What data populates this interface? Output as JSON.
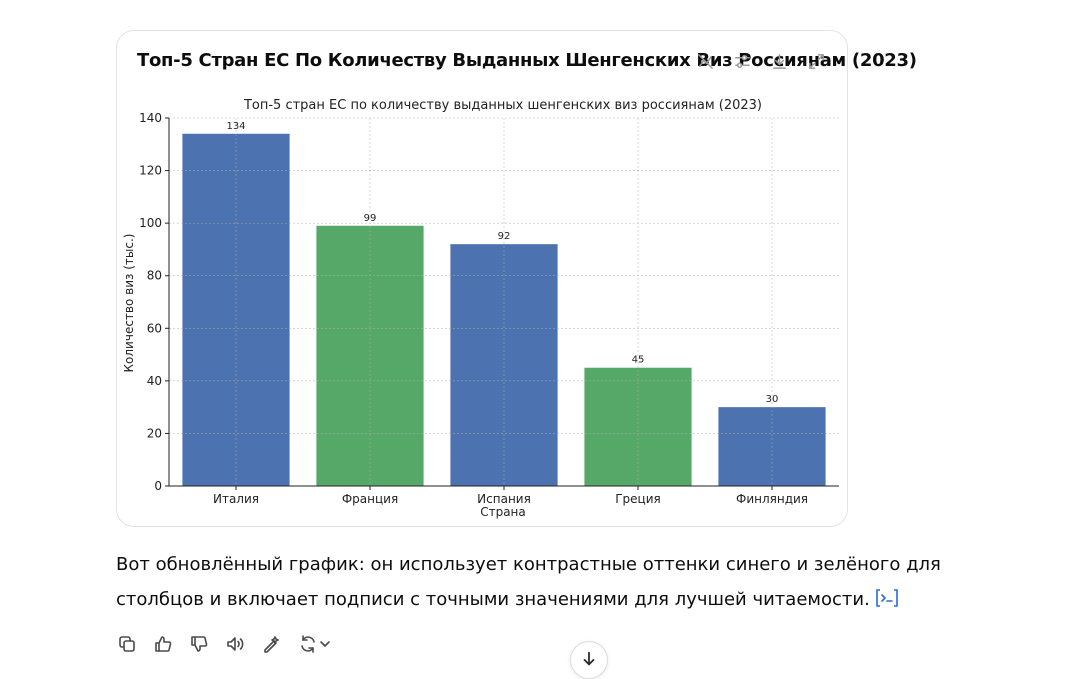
{
  "card": {
    "title": "Топ-5 Стран ЕС По Количеству Выданных Шенгенских Виз Россиянам (2023)",
    "tools": [
      "disable-interactive-icon",
      "filter-sliders-icon",
      "download-icon",
      "expand-icon"
    ]
  },
  "chart_data": {
    "type": "bar",
    "title": "Топ-5 стран ЕС по количеству выданных шенгенских виз россиянам (2023)",
    "xlabel": "Страна",
    "ylabel": "Количество виз (тыс.)",
    "categories": [
      "Италия",
      "Франция",
      "Испания",
      "Греция",
      "Финляндия"
    ],
    "values": [
      134,
      99,
      92,
      45,
      30
    ],
    "bar_colors": [
      "#4c72b0",
      "#55a868",
      "#4c72b0",
      "#55a868",
      "#4c72b0"
    ],
    "ylim": [
      0,
      140
    ],
    "yticks": [
      0,
      20,
      40,
      60,
      80,
      100,
      120,
      140
    ],
    "grid": true,
    "data_labels": true,
    "legend": "none"
  },
  "message": {
    "text": "Вот обновлённый график: он использует контрастные оттенки синего и зелёного для столбцов и включает подписи с точными значениями для лучшей читаемости.",
    "code_icon": "view-code-icon"
  },
  "actions": [
    "copy-icon",
    "thumbs-up-icon",
    "thumbs-down-icon",
    "read-aloud-icon",
    "edit-icon",
    "regenerate-icon"
  ],
  "colors": {
    "blue": "#4c72b0",
    "green": "#55a868",
    "link": "#2a6bd6"
  }
}
